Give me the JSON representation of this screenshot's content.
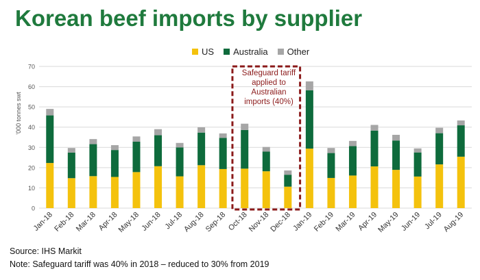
{
  "title": "Korean beef imports by supplier",
  "legend": [
    {
      "name": "US",
      "color": "#f4c20d"
    },
    {
      "name": "Australia",
      "color": "#0e6b3c"
    },
    {
      "name": "Other",
      "color": "#a6a6a6"
    }
  ],
  "annotation": "Safeguard tariff applied to Australian imports (40%)",
  "source": "Source: IHS Markit",
  "note": "Note: Safeguard tariff was 40% in 2018 – reduced to 30% from 2019",
  "chart_data": {
    "type": "bar",
    "stacked": true,
    "categories": [
      "Jan-18",
      "Feb-18",
      "Mar-18",
      "Apr-18",
      "May-18",
      "Jun-18",
      "Jul-18",
      "Aug-18",
      "Sep-18",
      "Oct-18",
      "Nov-18",
      "Dec-18",
      "Jan-19",
      "Feb-19",
      "Mar-19",
      "Apr-19",
      "May-19",
      "Jun-19",
      "Jul-19",
      "Aug-19"
    ],
    "series": [
      {
        "name": "US",
        "color": "#f4c20d",
        "values": [
          22.3,
          14.8,
          15.8,
          15.4,
          17.8,
          20.7,
          15.7,
          21.2,
          19.3,
          19.5,
          18.2,
          10.6,
          29.4,
          14.9,
          16.1,
          20.6,
          18.9,
          15.6,
          21.6,
          25.4
        ]
      },
      {
        "name": "Australia",
        "color": "#0e6b3c",
        "values": [
          23.5,
          12.6,
          15.8,
          13.3,
          15.0,
          15.3,
          14.3,
          16.1,
          15.4,
          19.1,
          9.7,
          5.9,
          28.8,
          12.3,
          14.5,
          17.7,
          14.5,
          11.9,
          15.4,
          15.5
        ]
      },
      {
        "name": "Other",
        "color": "#a6a6a6",
        "values": [
          3.2,
          2.3,
          2.5,
          2.4,
          2.6,
          3.0,
          2.2,
          2.6,
          2.2,
          3.1,
          2.3,
          2.1,
          4.4,
          2.5,
          2.6,
          2.8,
          2.8,
          2.0,
          2.7,
          2.4
        ]
      }
    ],
    "ylabel": "'000 tonnes swt",
    "ylim": [
      0,
      70
    ],
    "yticks": [
      0,
      10,
      20,
      30,
      40,
      50,
      60,
      70
    ],
    "grid": true,
    "legend_position": "top",
    "highlight": {
      "from": "Oct-18",
      "to": "Dec-18",
      "color": "#8b1a1a"
    }
  }
}
